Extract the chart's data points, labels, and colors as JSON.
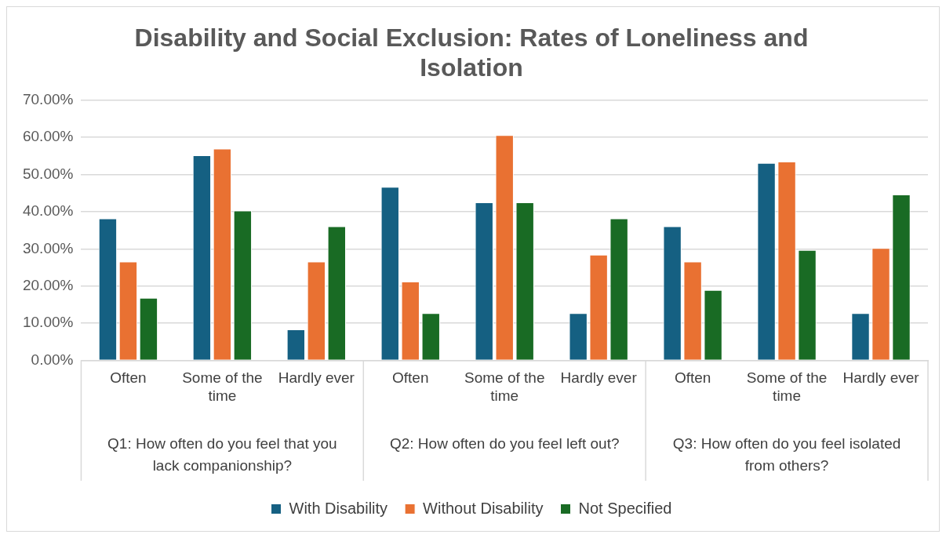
{
  "chart_data": {
    "type": "bar",
    "title": "Disability and Social Exclusion: Rates of Loneliness and Isolation",
    "categories": [
      "Often",
      "Some of the time",
      "Hardly ever",
      "Often",
      "Some of the time",
      "Hardly ever",
      "Often",
      "Some of the time",
      "Hardly ever"
    ],
    "annotations": [
      "Q1: How often do you feel that you lack companionship?",
      "Q2: How often do you feel left out?",
      "Q3: How often do you feel isolated from others?"
    ],
    "series": [
      {
        "name": "With Disability",
        "color": "#156082",
        "values": [
          38.2,
          55.2,
          8.3,
          46.7,
          42.5,
          12.7,
          36.1,
          53.1,
          12.7
        ]
      },
      {
        "name": "Without Disability",
        "color": "#e97132",
        "values": [
          26.6,
          57.0,
          26.6,
          21.2,
          60.6,
          28.4,
          26.6,
          53.5,
          30.2
        ]
      },
      {
        "name": "Not Specified",
        "color": "#196b24",
        "values": [
          16.8,
          40.3,
          36.1,
          12.7,
          42.5,
          38.2,
          18.9,
          29.7,
          44.6
        ]
      }
    ],
    "ylim": [
      0,
      70
    ],
    "yticks": [
      {
        "value": 0,
        "label": "0.00%"
      },
      {
        "value": 10,
        "label": "10.00%"
      },
      {
        "value": 20,
        "label": "20.00%"
      },
      {
        "value": 30,
        "label": "30.00%"
      },
      {
        "value": 40,
        "label": "40.00%"
      },
      {
        "value": 50,
        "label": "50.00%"
      },
      {
        "value": 60,
        "label": "60.00%"
      },
      {
        "value": 70,
        "label": "70.00%"
      }
    ],
    "grid": "y",
    "legend": "bottom"
  }
}
